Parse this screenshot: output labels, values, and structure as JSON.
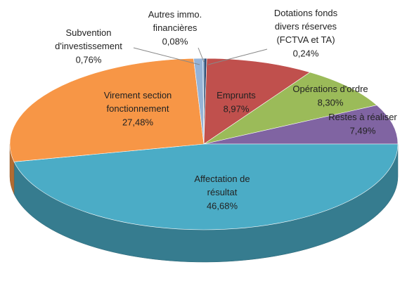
{
  "chart_data": {
    "type": "pie3d",
    "categories": [
      "Dotations fonds\ndivers réserves\n(FCTVA et TA)",
      "Emprunts",
      "Opérations d'ordre",
      "Restes à réaliser",
      "Affectation de\nrésultat",
      "Virement section\nfonctionnement",
      "Subvention\nd'investissement",
      "Autres immo.\nfinancières"
    ],
    "values": [
      0.24,
      8.97,
      8.3,
      7.49,
      46.68,
      27.48,
      0.76,
      0.08
    ],
    "value_labels": [
      "0,24%",
      "8,97%",
      "8,30%",
      "7,49%",
      "46,68%",
      "27,48%",
      "0,76%",
      "0,08%"
    ],
    "colors": [
      "#2c4d75",
      "#c0504d",
      "#9bbb59",
      "#8064a2",
      "#4bacc6",
      "#f79646",
      "#95b3d7",
      "#4f81bd"
    ]
  }
}
